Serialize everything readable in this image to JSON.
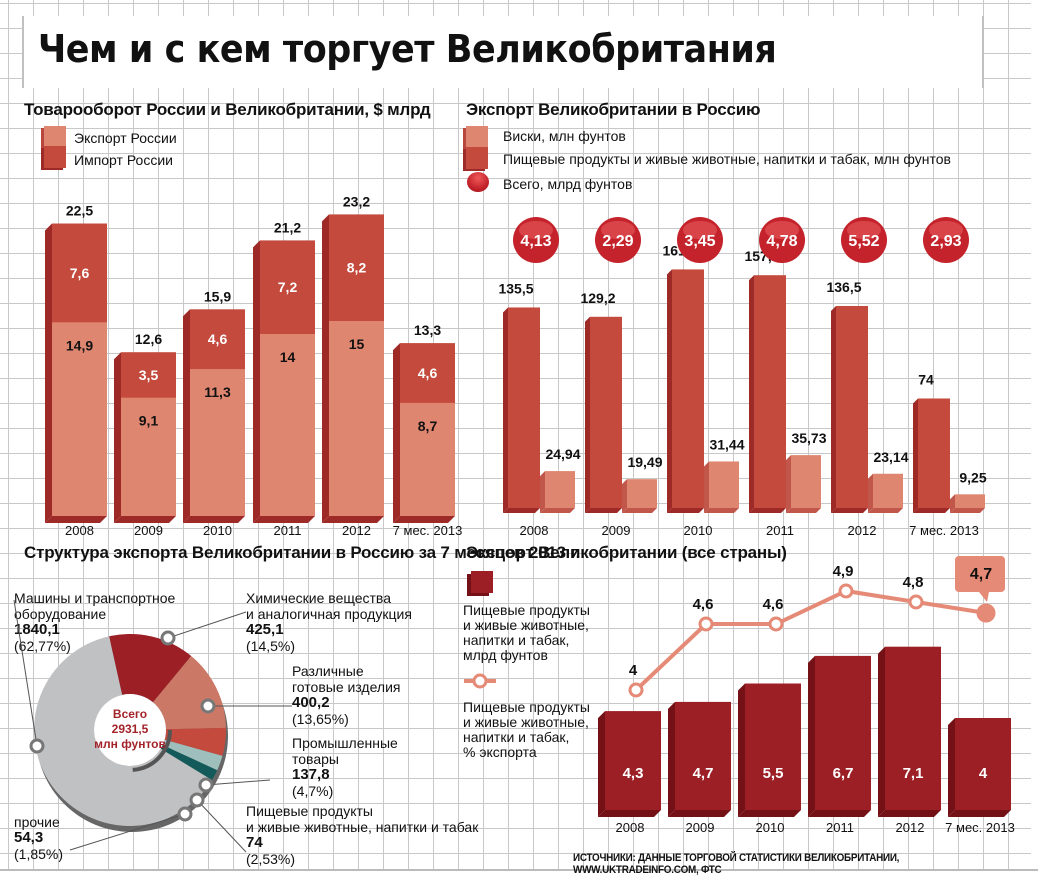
{
  "title": "Чем и с кем торгует Великобритания",
  "colors": {
    "light": "#df8670",
    "mid": "#c34a3c",
    "dark": "#9b1f25",
    "dark_side": "#741117",
    "side": "#9e2a28",
    "ball": "#c4232b",
    "grey": "#c0c1c3",
    "teal_light": "#9fbfbc",
    "teal_dark": "#135b5a",
    "line": "#e58a76"
  },
  "chart_data": [
    {
      "type": "bar",
      "stacked": true,
      "title": "Товарооборот России и Великобритании, $ млрд",
      "categories": [
        "2008",
        "2009",
        "2010",
        "2011",
        "2012",
        "7 мес. 2013"
      ],
      "series": [
        {
          "name": "Экспорт России",
          "values": [
            14.9,
            9.1,
            11.3,
            14,
            15,
            8.7
          ],
          "labels": [
            "14,9",
            "9,1",
            "11,3",
            "14",
            "15",
            "8,7"
          ]
        },
        {
          "name": "Импорт России",
          "values": [
            7.6,
            3.5,
            4.6,
            7.2,
            8.2,
            4.6
          ],
          "labels": [
            "7,6",
            "3,5",
            "4,6",
            "7,2",
            "8,2",
            "4,6"
          ]
        }
      ],
      "totals": [
        22.5,
        12.6,
        15.9,
        21.2,
        23.2,
        13.3
      ],
      "total_labels": [
        "22,5",
        "12,6",
        "15,9",
        "21,2",
        "23,2",
        "13,3"
      ],
      "legend": "top-left"
    },
    {
      "type": "bar",
      "title": "Экспорт Великобритании в Россию",
      "categories": [
        "2008",
        "2009",
        "2010",
        "2011",
        "2012",
        "7 мес. 2013"
      ],
      "series": [
        {
          "name": "Пищевые продукты и живые животные, напитки и табак, млн фунтов",
          "values": [
            135.5,
            129.2,
            161.2,
            157.3,
            136.5,
            74
          ],
          "labels": [
            "135,5",
            "129,2",
            "161,2",
            "157,3",
            "136,5",
            "74"
          ]
        },
        {
          "name": "Виски, млн фунтов",
          "values": [
            24.94,
            19.49,
            31.44,
            35.73,
            23.14,
            9.25
          ],
          "labels": [
            "24,94",
            "19,49",
            "31,44",
            "35,73",
            "23,14",
            "9,25"
          ]
        }
      ],
      "totals_series": {
        "name": "Всего, млрд фунтов",
        "values": [
          4.13,
          2.29,
          3.45,
          4.78,
          5.52,
          2.93
        ],
        "labels": [
          "4,13",
          "2,29",
          "3,45",
          "4,78",
          "5,52",
          "2,93"
        ]
      },
      "legend": "top-left"
    },
    {
      "type": "pie",
      "donut": true,
      "title": "Структура экспорта Великобритании в Россию за 7 месяцев 2013 г.",
      "center_label": [
        "Всего",
        "2931,5",
        "млн фунтов"
      ],
      "total": 2931.5,
      "slices": [
        {
          "name": "Машины и транспортное оборудование",
          "value": 1840.1,
          "value_label": "1840,1",
          "percent": 62.77,
          "percent_label": "(62,77%)"
        },
        {
          "name": "Химические вещества и аналогичная продукция",
          "value": 425.1,
          "value_label": "425,1",
          "percent": 14.5,
          "percent_label": "(14,5%)"
        },
        {
          "name": "Различные готовые изделия",
          "value": 400.2,
          "value_label": "400,2",
          "percent": 13.65,
          "percent_label": "(13,65%)"
        },
        {
          "name": "Промышленные товары",
          "value": 137.8,
          "value_label": "137,8",
          "percent": 4.7,
          "percent_label": "(4,7%)"
        },
        {
          "name": "Пищевые продукты и живые животные, напитки и табак",
          "value": 74,
          "value_label": "74",
          "percent": 2.53,
          "percent_label": "(2,53%)"
        },
        {
          "name": "прочие",
          "value": 54.3,
          "value_label": "54,3",
          "percent": 1.85,
          "percent_label": "(1,85%)"
        }
      ]
    },
    {
      "type": "bar",
      "title": "Экспорт Великобритании (все страны)",
      "categories": [
        "2008",
        "2009",
        "2010",
        "2011",
        "2012",
        "7 мес. 2013"
      ],
      "series": [
        {
          "name": "Пищевые продукты и живые животные, напитки и табак, млрд фунтов",
          "type": "bar",
          "values": [
            4.3,
            4.7,
            5.5,
            6.7,
            7.1,
            4
          ],
          "labels": [
            "4,3",
            "4,7",
            "5,5",
            "6,7",
            "7,1",
            "4"
          ]
        },
        {
          "name": "Пищевые продукты и живые животные, напитки и табак, % экспорта",
          "type": "line",
          "values": [
            4,
            4.6,
            4.6,
            4.9,
            4.8,
            4.7
          ],
          "labels": [
            "4",
            "4,6",
            "4,6",
            "4,9",
            "4,8",
            "4,7"
          ]
        }
      ],
      "legend": "left"
    }
  ],
  "legends": {
    "trade": [
      "Экспорт России",
      "Импорт России"
    ],
    "uk_ru": [
      "Виски, млн фунтов",
      "Пищевые продукты и живые животные, напитки и табак, млн фунтов",
      "Всего, млрд фунтов"
    ],
    "uk_all_bar": [
      "Пищевые продукты",
      "и живые животные,",
      "напитки и табак,",
      "млрд фунтов"
    ],
    "uk_all_line": [
      "Пищевые продукты",
      "и живые животные,",
      "напитки и табак,",
      "% экспорта"
    ]
  },
  "donut_labels": {
    "machines": [
      "Машины и транспортное",
      "оборудование"
    ],
    "chem": [
      "Химические вещества",
      "и аналогичная продукция"
    ],
    "misc": [
      "Различные",
      "готовые изделия"
    ],
    "industrial": [
      "Промышленные",
      "товары"
    ],
    "food": [
      "Пищевые продукты",
      "и живые животные, напитки и табак"
    ],
    "other": [
      "прочие"
    ]
  },
  "source": "ИСТОЧНИКИ: ДАННЫЕ ТОРГОВОЙ СТАТИСТИКИ ВЕЛИКОБРИТАНИИ, WWW.UKTRADEINFO.COM, ФТС"
}
